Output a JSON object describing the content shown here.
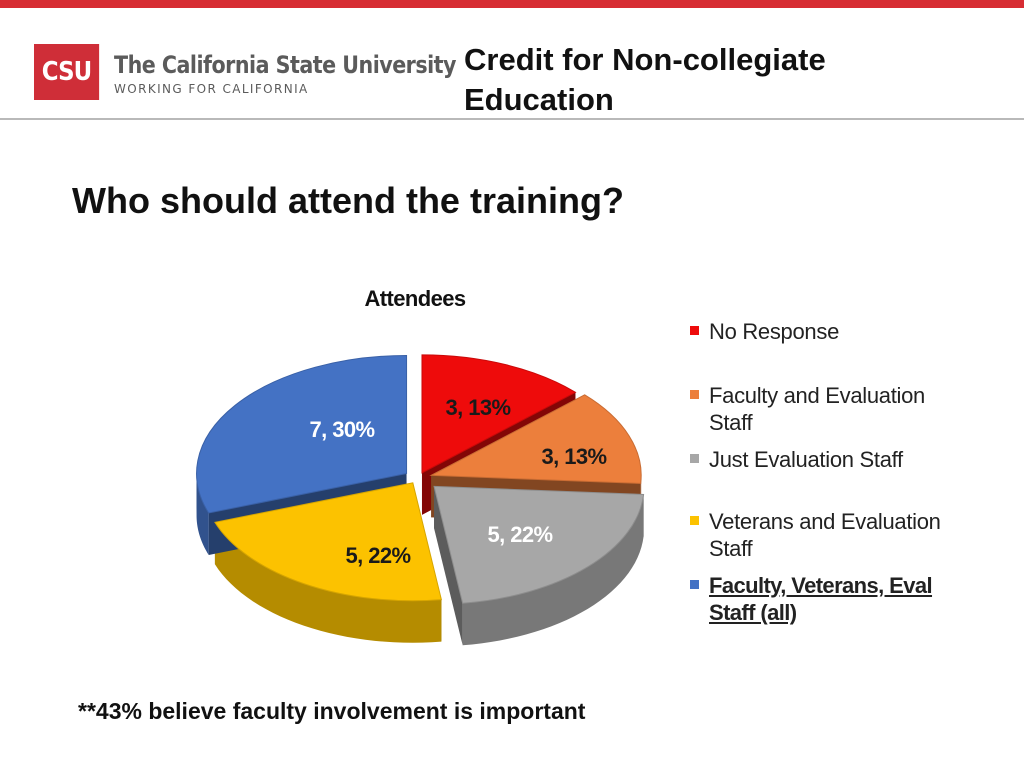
{
  "header": {
    "logo_mark": "CSU",
    "logo_name": "The California State University",
    "logo_tagline": "WORKING FOR CALIFORNIA",
    "title_line1": "Credit for Non-collegiate",
    "title_line2": "Education"
  },
  "slide": {
    "title": "Who should attend the training?",
    "footnote": "**43% believe faculty involvement is important"
  },
  "colors": {
    "accent_bar": "#d72d33",
    "logo_red": "#cf2e38"
  },
  "chart_data": {
    "type": "pie",
    "title": "Attendees",
    "legend_position": "right",
    "slices": [
      {
        "name": "No Response",
        "value": 3,
        "percent": 13,
        "label": "3, 13%",
        "color": "#ee0b0b"
      },
      {
        "name": "Faculty and Evaluation Staff",
        "value": 3,
        "percent": 13,
        "label": "3, 13%",
        "color": "#ec7f3c"
      },
      {
        "name": "Just Evaluation Staff",
        "value": 5,
        "percent": 22,
        "label": "5, 22%",
        "color": "#a7a7a7"
      },
      {
        "name": "Veterans and Evaluation Staff",
        "value": 5,
        "percent": 22,
        "label": "5, 22%",
        "color": "#fcc200"
      },
      {
        "name": "Faculty,  Veterans, Eval Staff (all)",
        "value": 7,
        "percent": 30,
        "label": "7, 30%",
        "color": "#4472c4"
      }
    ]
  }
}
